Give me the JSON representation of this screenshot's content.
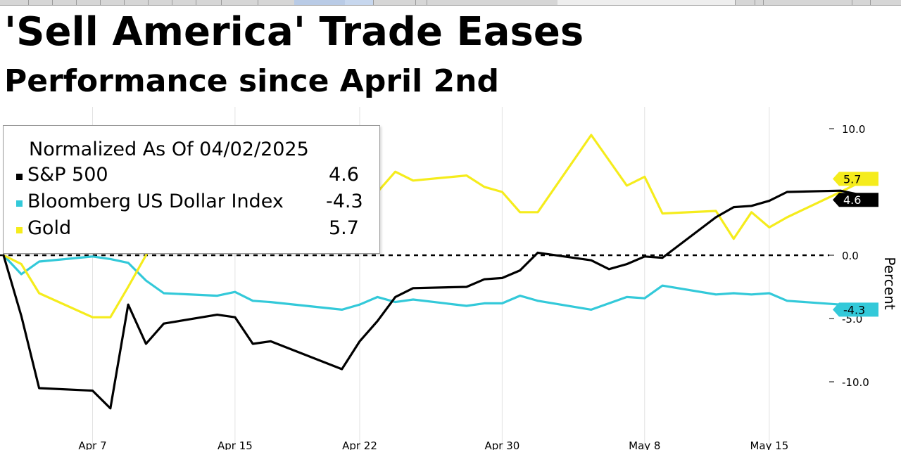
{
  "title": "'Sell America' Trade Eases",
  "subtitle": "Performance since April 2nd",
  "legend": {
    "header": "Normalized As Of 04/02/2025",
    "items": [
      {
        "name": "S&P 500",
        "value": "4.6"
      },
      {
        "name": "Bloomberg US Dollar Index",
        "value": "-4.3"
      },
      {
        "name": "Gold",
        "value": "5.7"
      }
    ]
  },
  "chart_data": {
    "type": "line",
    "ylabel": "Percent",
    "ylim": [
      -15,
      10
    ],
    "yticks": [
      10,
      0,
      -5,
      -10
    ],
    "ytick_labels": [
      "10.0",
      "0.0",
      "-5.0",
      "-10.0"
    ],
    "xlim": [
      "2025-04-02",
      "2025-05-22"
    ],
    "xticks": [
      {
        "date": "2025-04-07",
        "label": "Apr 7"
      },
      {
        "date": "2025-04-15",
        "label": "Apr 15"
      },
      {
        "date": "2025-04-22",
        "label": "Apr 22"
      },
      {
        "date": "2025-04-30",
        "label": "Apr 30"
      },
      {
        "date": "2025-05-08",
        "label": "May 8"
      },
      {
        "date": "2025-05-15",
        "label": "May 15"
      }
    ],
    "zero_line": "dashed",
    "grid": "vertical",
    "legend_position": "top-left",
    "series": [
      {
        "name": "S&P 500",
        "color": "#000000",
        "last_label": "4.6",
        "points": [
          [
            "2025-04-02",
            0
          ],
          [
            "2025-04-03",
            -4.8
          ],
          [
            "2025-04-04",
            -10.5
          ],
          [
            "2025-04-07",
            -10.7
          ],
          [
            "2025-04-08",
            -12.1
          ],
          [
            "2025-04-09",
            -3.9
          ],
          [
            "2025-04-10",
            -7.0
          ],
          [
            "2025-04-11",
            -5.4
          ],
          [
            "2025-04-14",
            -4.7
          ],
          [
            "2025-04-15",
            -4.9
          ],
          [
            "2025-04-16",
            -7.0
          ],
          [
            "2025-04-17",
            -6.8
          ],
          [
            "2025-04-21",
            -9.0
          ],
          [
            "2025-04-22",
            -6.8
          ],
          [
            "2025-04-23",
            -5.2
          ],
          [
            "2025-04-24",
            -3.3
          ],
          [
            "2025-04-25",
            -2.6
          ],
          [
            "2025-04-28",
            -2.5
          ],
          [
            "2025-04-29",
            -1.9
          ],
          [
            "2025-04-30",
            -1.8
          ],
          [
            "2025-05-01",
            -1.2
          ],
          [
            "2025-05-02",
            0.2
          ],
          [
            "2025-05-05",
            -0.4
          ],
          [
            "2025-05-06",
            -1.1
          ],
          [
            "2025-05-07",
            -0.7
          ],
          [
            "2025-05-08",
            -0.1
          ],
          [
            "2025-05-09",
            -0.2
          ],
          [
            "2025-05-12",
            3.0
          ],
          [
            "2025-05-13",
            3.8
          ],
          [
            "2025-05-14",
            3.9
          ],
          [
            "2025-05-15",
            4.3
          ],
          [
            "2025-05-16",
            5.0
          ],
          [
            "2025-05-19",
            5.1
          ],
          [
            "2025-05-20",
            4.8
          ],
          [
            "2025-05-21",
            4.6
          ]
        ]
      },
      {
        "name": "Bloomberg US Dollar Index",
        "color": "#33c9d9",
        "last_label": "-4.3",
        "points": [
          [
            "2025-04-02",
            0
          ],
          [
            "2025-04-03",
            -1.5
          ],
          [
            "2025-04-04",
            -0.5
          ],
          [
            "2025-04-07",
            -0.1
          ],
          [
            "2025-04-08",
            -0.3
          ],
          [
            "2025-04-09",
            -0.6
          ],
          [
            "2025-04-10",
            -2.0
          ],
          [
            "2025-04-11",
            -3.0
          ],
          [
            "2025-04-14",
            -3.2
          ],
          [
            "2025-04-15",
            -2.9
          ],
          [
            "2025-04-16",
            -3.6
          ],
          [
            "2025-04-17",
            -3.7
          ],
          [
            "2025-04-21",
            -4.3
          ],
          [
            "2025-04-22",
            -3.9
          ],
          [
            "2025-04-23",
            -3.3
          ],
          [
            "2025-04-24",
            -3.7
          ],
          [
            "2025-04-25",
            -3.5
          ],
          [
            "2025-04-28",
            -4.0
          ],
          [
            "2025-04-29",
            -3.8
          ],
          [
            "2025-04-30",
            -3.8
          ],
          [
            "2025-05-01",
            -3.2
          ],
          [
            "2025-05-02",
            -3.6
          ],
          [
            "2025-05-05",
            -4.3
          ],
          [
            "2025-05-06",
            -3.8
          ],
          [
            "2025-05-07",
            -3.3
          ],
          [
            "2025-05-08",
            -3.4
          ],
          [
            "2025-05-09",
            -2.4
          ],
          [
            "2025-05-12",
            -3.1
          ],
          [
            "2025-05-13",
            -3.0
          ],
          [
            "2025-05-14",
            -3.1
          ],
          [
            "2025-05-15",
            -3.0
          ],
          [
            "2025-05-16",
            -3.6
          ],
          [
            "2025-05-19",
            -3.9
          ],
          [
            "2025-05-20",
            -4.3
          ]
        ]
      },
      {
        "name": "Gold",
        "color": "#f5ec1c",
        "last_label": "5.7",
        "points": [
          [
            "2025-04-02",
            0
          ],
          [
            "2025-04-03",
            -0.7
          ],
          [
            "2025-04-04",
            -3.0
          ],
          [
            "2025-04-07",
            -4.9
          ],
          [
            "2025-04-08",
            -4.9
          ],
          [
            "2025-04-09",
            -2.5
          ],
          [
            "2025-04-10",
            0.0
          ],
          [
            "2025-04-11",
            2.5
          ],
          [
            "2025-04-14",
            5.2
          ],
          [
            "2025-04-15",
            6.1
          ],
          [
            "2025-04-16",
            6.8
          ],
          [
            "2025-04-17",
            6.1
          ],
          [
            "2025-04-21",
            5.6
          ],
          [
            "2025-04-22",
            4.7
          ],
          [
            "2025-04-23",
            5.0
          ],
          [
            "2025-04-24",
            6.6
          ],
          [
            "2025-04-25",
            5.9
          ],
          [
            "2025-04-28",
            6.3
          ],
          [
            "2025-04-29",
            5.4
          ],
          [
            "2025-04-30",
            5.0
          ],
          [
            "2025-05-01",
            3.4
          ],
          [
            "2025-05-02",
            3.4
          ],
          [
            "2025-05-05",
            9.5
          ],
          [
            "2025-05-06",
            7.5
          ],
          [
            "2025-05-07",
            5.5
          ],
          [
            "2025-05-08",
            6.2
          ],
          [
            "2025-05-09",
            3.3
          ],
          [
            "2025-05-12",
            3.5
          ],
          [
            "2025-05-13",
            1.3
          ],
          [
            "2025-05-14",
            3.4
          ],
          [
            "2025-05-15",
            2.2
          ],
          [
            "2025-05-16",
            3.0
          ],
          [
            "2025-05-19",
            5.0
          ],
          [
            "2025-05-20",
            5.7
          ]
        ]
      }
    ]
  }
}
